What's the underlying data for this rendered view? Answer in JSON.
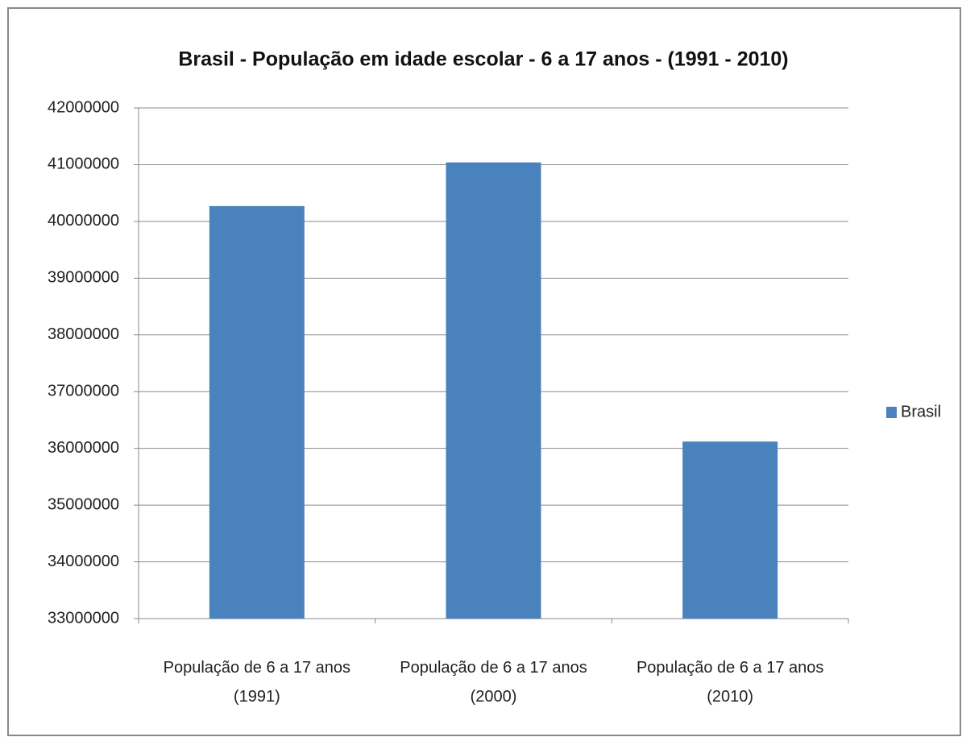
{
  "chart_data": {
    "type": "bar",
    "title": "Brasil - População em idade escolar - 6 a 17 anos - (1991 - 2010)",
    "categories": [
      "População de 6 a 17 anos (1991)",
      "População de 6 a 17 anos (2000)",
      "População de 6 a 17 anos (2010)"
    ],
    "series": [
      {
        "name": "Brasil",
        "color": "#4a82bd",
        "values": [
          40270000,
          41040000,
          36120000
        ]
      }
    ],
    "ylim": [
      33000000,
      42000000
    ],
    "yticks": [
      33000000,
      34000000,
      35000000,
      36000000,
      37000000,
      38000000,
      39000000,
      40000000,
      41000000,
      42000000
    ],
    "grid": true,
    "legend": "right"
  }
}
